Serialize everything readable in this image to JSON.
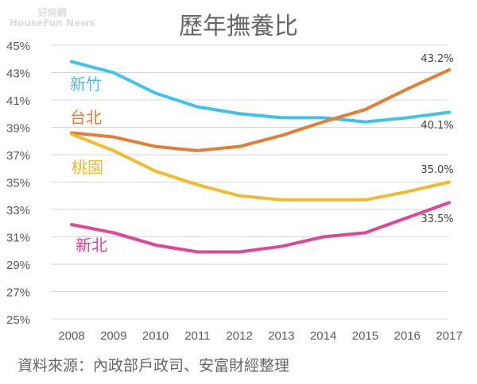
{
  "chart_data": {
    "type": "line",
    "title": "歷年撫養比",
    "source": "資料來源：內政部戶政司、安富財經整理",
    "watermark": "好房網 HouseFun News",
    "categories": [
      "2008",
      "2009",
      "2010",
      "2011",
      "2012",
      "2013",
      "2014",
      "2015",
      "2016",
      "2017"
    ],
    "ylim": [
      25,
      45
    ],
    "yticks": [
      "25%",
      "27%",
      "29%",
      "31%",
      "33%",
      "35%",
      "37%",
      "39%",
      "41%",
      "43%",
      "45%"
    ],
    "grid": true,
    "series": [
      {
        "name": "新竹",
        "color": "#3cc3ee",
        "values": [
          43.8,
          43.0,
          41.5,
          40.5,
          40.0,
          39.7,
          39.7,
          39.4,
          39.7,
          40.1
        ],
        "end_label": "40.1%"
      },
      {
        "name": "台北",
        "color": "#e57d35",
        "values": [
          38.6,
          38.3,
          37.6,
          37.3,
          37.6,
          38.4,
          39.4,
          40.3,
          41.8,
          43.2
        ],
        "end_label": "43.2%"
      },
      {
        "name": "桃園",
        "color": "#f2bb2c",
        "values": [
          38.5,
          37.3,
          35.8,
          34.8,
          34.0,
          33.7,
          33.7,
          33.7,
          34.3,
          35.0
        ],
        "end_label": "35.0%"
      },
      {
        "name": "新北",
        "color": "#e04596",
        "values": [
          31.9,
          31.3,
          30.4,
          29.9,
          29.9,
          30.3,
          31.0,
          31.3,
          32.4,
          33.5
        ],
        "end_label": "33.5%"
      }
    ]
  }
}
